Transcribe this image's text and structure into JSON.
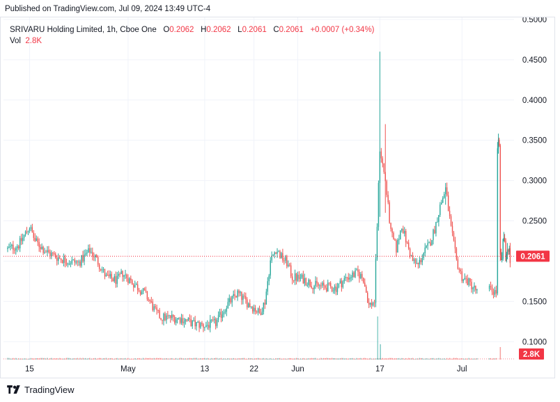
{
  "header": {
    "published": "Published on TradingView.com, Jul 09, 2024 13:49 UTC-4"
  },
  "legend": {
    "symbol": "SRIVARU Holding Limited, 1h, Cboe One",
    "o_label": "O",
    "o_value": "0.2062",
    "h_label": "H",
    "h_value": "0.2062",
    "l_label": "L",
    "l_value": "0.2061",
    "c_label": "C",
    "c_value": "0.2061",
    "change": "+0.0007 (+0.34%)",
    "vol_label": "Vol",
    "vol_value": "2.8K"
  },
  "footer": {
    "brand": "TradingView"
  },
  "colors": {
    "up": "#26a69a",
    "down": "#ef5350",
    "price_line": "#f23645",
    "grid": "#f0f3fa",
    "text": "#131722"
  },
  "chart_data": {
    "type": "candlestick",
    "title": "SRIVARU Holding Limited, 1h, Cboe One",
    "ylim": [
      0.0925,
      0.5025
    ],
    "y_ticks": [
      "0.5000",
      "0.4500",
      "0.4000",
      "0.3500",
      "0.3000",
      "0.2500",
      "0.1500",
      "0.1000"
    ],
    "last_price_label": "0.2061",
    "last_price": 0.2061,
    "volume_label": "2.8K",
    "x_ticks": [
      {
        "label": "15",
        "t": 4
      },
      {
        "label": "May",
        "t": 22
      },
      {
        "label": "13",
        "t": 36
      },
      {
        "label": "22",
        "t": 45
      },
      {
        "label": "Jun",
        "t": 53
      },
      {
        "label": "17",
        "t": 68
      },
      {
        "label": "Jul",
        "t": 83
      }
    ],
    "trading_days": 92,
    "price_anchors": [
      [
        0,
        0.215
      ],
      [
        2,
        0.22
      ],
      [
        4,
        0.243
      ],
      [
        5,
        0.225
      ],
      [
        7,
        0.212
      ],
      [
        9,
        0.205
      ],
      [
        11,
        0.2
      ],
      [
        13,
        0.198
      ],
      [
        15,
        0.213
      ],
      [
        16,
        0.205
      ],
      [
        18,
        0.18
      ],
      [
        20,
        0.176
      ],
      [
        21,
        0.185
      ],
      [
        23,
        0.172
      ],
      [
        25,
        0.16
      ],
      [
        26,
        0.15
      ],
      [
        27,
        0.137
      ],
      [
        28,
        0.13
      ],
      [
        30,
        0.13
      ],
      [
        32,
        0.128
      ],
      [
        34,
        0.122
      ],
      [
        36,
        0.12
      ],
      [
        38,
        0.123
      ],
      [
        40,
        0.145
      ],
      [
        42,
        0.16
      ],
      [
        44,
        0.147
      ],
      [
        45,
        0.142
      ],
      [
        46,
        0.135
      ],
      [
        47,
        0.15
      ],
      [
        48,
        0.2
      ],
      [
        49,
        0.215
      ],
      [
        50,
        0.205
      ],
      [
        51,
        0.198
      ],
      [
        52,
        0.18
      ],
      [
        54,
        0.178
      ],
      [
        56,
        0.17
      ],
      [
        58,
        0.168
      ],
      [
        60,
        0.167
      ],
      [
        62,
        0.18
      ],
      [
        64,
        0.185
      ],
      [
        65,
        0.178
      ],
      [
        66,
        0.145
      ],
      [
        67,
        0.15
      ],
      [
        68,
        0.34
      ],
      [
        69,
        0.3
      ],
      [
        70,
        0.235
      ],
      [
        71,
        0.215
      ],
      [
        72,
        0.245
      ],
      [
        73,
        0.22
      ],
      [
        74,
        0.2
      ],
      [
        75,
        0.195
      ],
      [
        76,
        0.21
      ],
      [
        77,
        0.22
      ],
      [
        78,
        0.24
      ],
      [
        79,
        0.268
      ],
      [
        80,
        0.29
      ],
      [
        81,
        0.24
      ],
      [
        82,
        0.2
      ],
      [
        83,
        0.18
      ],
      [
        84,
        0.175
      ],
      [
        85,
        0.168
      ],
      [
        86,
        0.16
      ],
      [
        87,
        0.158
      ],
      [
        88,
        0.165
      ],
      [
        89,
        0.162
      ],
      [
        90,
        0.16
      ],
      [
        91,
        0.158
      ]
    ],
    "spikes": [
      {
        "t": 68,
        "high": 0.46,
        "low": 0.255,
        "vol": 0.14
      },
      {
        "t": 69,
        "high": 0.37,
        "low": 0.26,
        "vol": 0.055
      },
      {
        "t": 80,
        "high": 0.297,
        "low": 0.27,
        "vol": 0.02
      }
    ],
    "gap_days": [
      84,
      85,
      86,
      87
    ],
    "final_anchors": [
      [
        89.5,
        0.345
      ],
      [
        90,
        0.2
      ],
      [
        90.5,
        0.22
      ],
      [
        91,
        0.21
      ],
      [
        91.5,
        0.2061
      ]
    ],
    "volume_series": [
      {
        "t": 67.6,
        "vol": 0.62
      },
      {
        "t": 68.1,
        "vol": 0.22
      },
      {
        "t": 90.0,
        "vol": 0.18
      }
    ]
  }
}
